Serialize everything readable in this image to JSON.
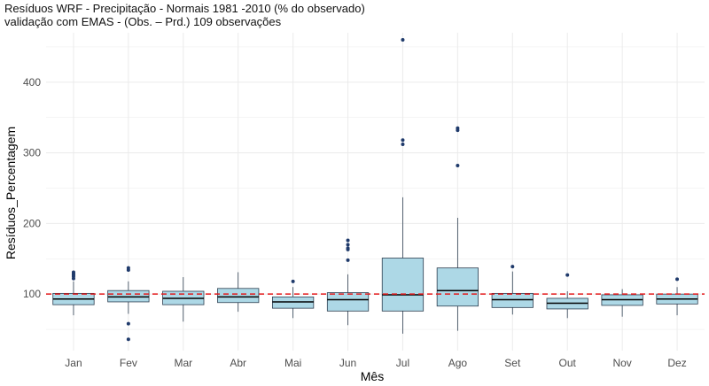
{
  "chart_data": {
    "type": "boxplot",
    "title_lines": [
      "Resíduos  WRF - Precipitação  - Normais 1981 -2010 (% do observado)",
      "validação com EMAS - (Obs. – Prd.) 109 observações"
    ],
    "xlabel": "Mês",
    "ylabel": "Resíduos_Percentagem",
    "ylim": [
      20,
      470
    ],
    "yticks": [
      100,
      200,
      300,
      400
    ],
    "reference_line": 100,
    "categories": [
      "Jan",
      "Fev",
      "Mar",
      "Abr",
      "Mai",
      "Jun",
      "Jul",
      "Ago",
      "Set",
      "Out",
      "Nov",
      "Dez"
    ],
    "boxes": [
      {
        "min": 70,
        "q1": 85,
        "median": 93,
        "q3": 101,
        "max": 118,
        "outliers": [
          122,
          125,
          127,
          129,
          131
        ]
      },
      {
        "min": 72,
        "q1": 89,
        "median": 96,
        "q3": 105,
        "max": 118,
        "outliers": [
          134,
          137,
          58,
          36
        ]
      },
      {
        "min": 61,
        "q1": 85,
        "median": 94,
        "q3": 104,
        "max": 124,
        "outliers": []
      },
      {
        "min": 75,
        "q1": 88,
        "median": 96,
        "q3": 108,
        "max": 131,
        "outliers": []
      },
      {
        "min": 66,
        "q1": 80,
        "median": 89,
        "q3": 96,
        "max": 110,
        "outliers": [
          118
        ]
      },
      {
        "min": 56,
        "q1": 76,
        "median": 92,
        "q3": 102,
        "max": 128,
        "outliers": [
          176,
          170,
          165,
          163,
          148
        ]
      },
      {
        "min": 44,
        "q1": 76,
        "median": 99,
        "q3": 151,
        "max": 237,
        "outliers": [
          460,
          318,
          312
        ]
      },
      {
        "min": 48,
        "q1": 83,
        "median": 105,
        "q3": 137,
        "max": 208,
        "outliers": [
          335,
          332,
          282
        ]
      },
      {
        "min": 71,
        "q1": 81,
        "median": 92,
        "q3": 101,
        "max": 132,
        "outliers": [
          139
        ]
      },
      {
        "min": 66,
        "q1": 79,
        "median": 87,
        "q3": 94,
        "max": 104,
        "outliers": [
          127
        ]
      },
      {
        "min": 68,
        "q1": 84,
        "median": 92,
        "q3": 99,
        "max": 107,
        "outliers": []
      },
      {
        "min": 70,
        "q1": 86,
        "median": 93,
        "q3": 100,
        "max": 110,
        "outliers": [
          121
        ]
      }
    ],
    "colors": {
      "box_fill": "#add8e6",
      "box_stroke": "#2d3e50",
      "outlier": "#1f3a6b",
      "reference_line": "#e31a1c",
      "grid": "#ebebeb"
    }
  }
}
